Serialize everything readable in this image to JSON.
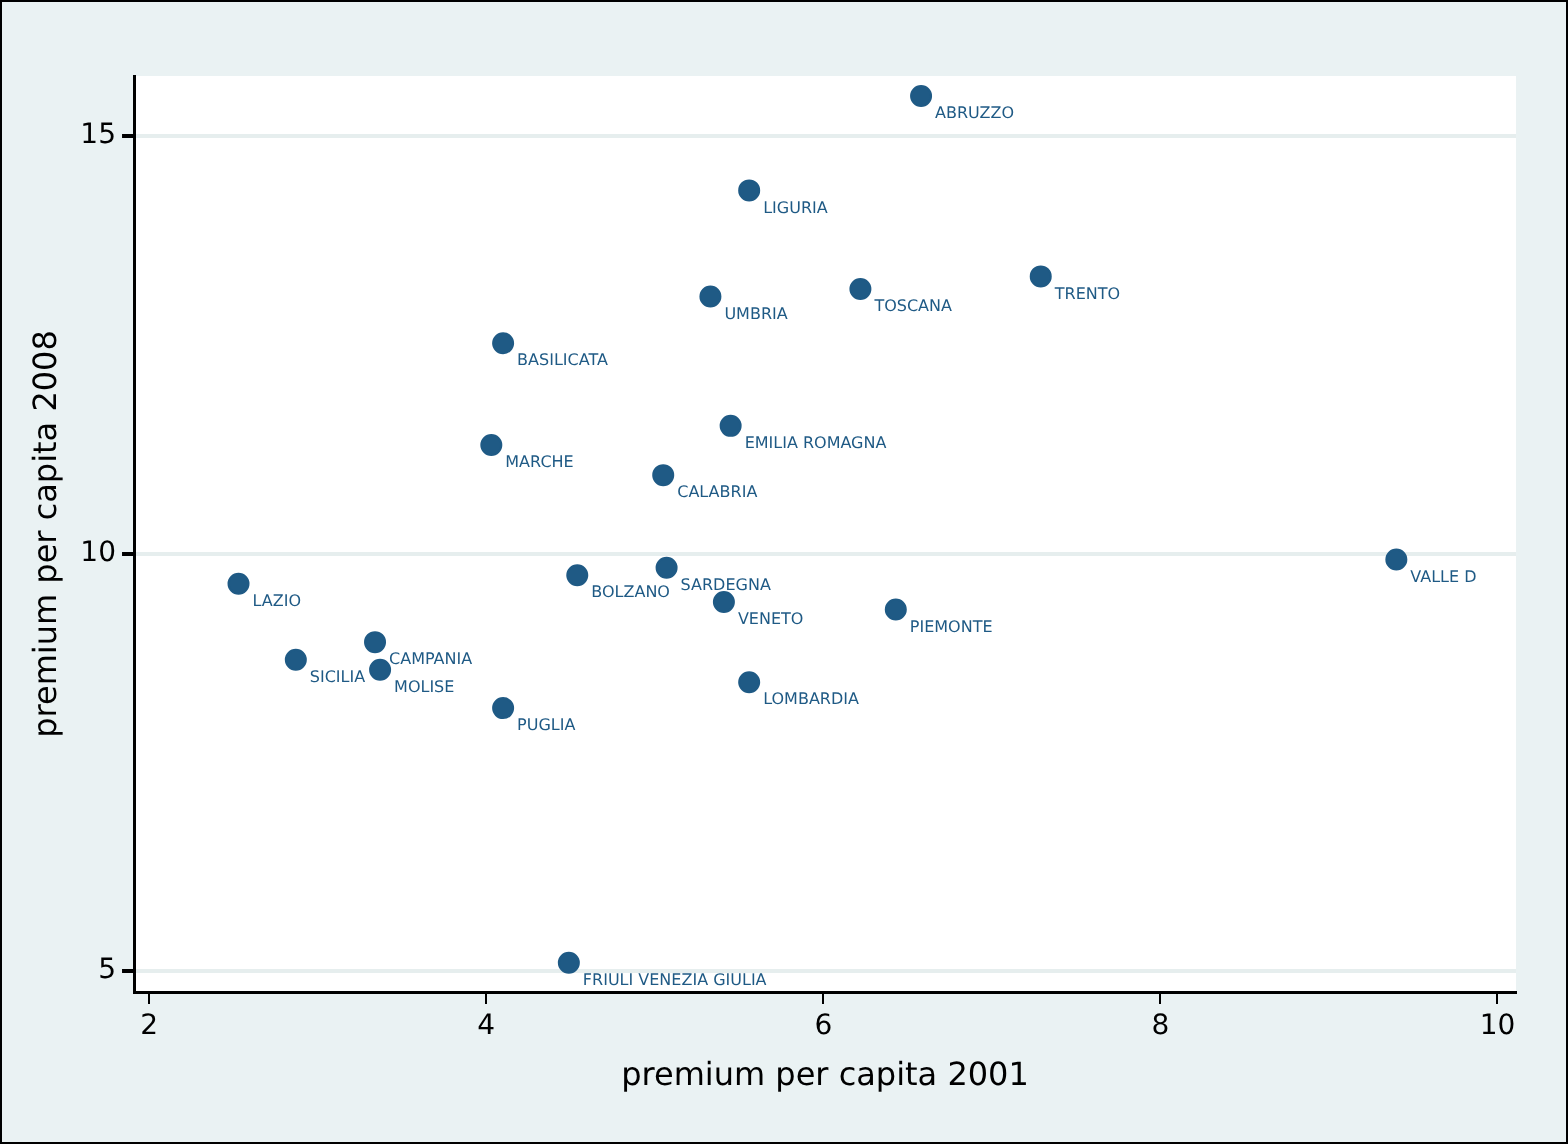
{
  "chart_data": {
    "type": "scatter",
    "xlabel": "premium per capita 2001",
    "ylabel": "premium per capita 2008",
    "x": [
      6.58,
      5.56,
      5.33,
      6.22,
      7.29,
      4.1,
      5.45,
      4.03,
      5.05,
      9.4,
      2.53,
      4.54,
      5.07,
      5.41,
      6.43,
      3.34,
      2.87,
      3.37,
      5.56,
      4.1,
      4.49
    ],
    "series": [
      {
        "color": "#1f5a85",
        "values": [
          15.48,
          14.35,
          13.08,
          13.17,
          13.32,
          12.52,
          11.53,
          11.3,
          10.94,
          9.93,
          9.64,
          9.74,
          9.83,
          9.42,
          9.33,
          8.94,
          8.73,
          8.61,
          8.46,
          8.15,
          5.1
        ]
      }
    ],
    "annotations": [
      {
        "text": "ABRUZZO",
        "x": 6.58,
        "y": 15.48
      },
      {
        "text": "LIGURIA",
        "x": 5.56,
        "y": 14.35
      },
      {
        "text": "UMBRIA",
        "x": 5.33,
        "y": 13.08
      },
      {
        "text": "TOSCANA",
        "x": 6.22,
        "y": 13.17
      },
      {
        "text": "TRENTO",
        "x": 7.29,
        "y": 13.32
      },
      {
        "text": "BASILICATA",
        "x": 4.1,
        "y": 12.52
      },
      {
        "text": "EMILIA ROMAGNA",
        "x": 5.45,
        "y": 11.53
      },
      {
        "text": "MARCHE",
        "x": 4.03,
        "y": 11.3
      },
      {
        "text": "CALABRIA",
        "x": 5.05,
        "y": 10.94
      },
      {
        "text": "VALLE D",
        "x": 9.4,
        "y": 9.93
      },
      {
        "text": "LAZIO",
        "x": 2.53,
        "y": 9.64
      },
      {
        "text": "BOLZANO",
        "x": 4.54,
        "y": 9.74
      },
      {
        "text": "SARDEGNA",
        "x": 5.07,
        "y": 9.83
      },
      {
        "text": "VENETO",
        "x": 5.41,
        "y": 9.42
      },
      {
        "text": "PIEMONTE",
        "x": 6.43,
        "y": 9.33
      },
      {
        "text": "CAMPANIA",
        "x": 3.34,
        "y": 8.94
      },
      {
        "text": "SICILIA",
        "x": 2.87,
        "y": 8.73
      },
      {
        "text": "MOLISE",
        "x": 3.37,
        "y": 8.61
      },
      {
        "text": "LOMBARDIA",
        "x": 5.56,
        "y": 8.46
      },
      {
        "text": "PUGLIA",
        "x": 4.1,
        "y": 8.15
      },
      {
        "text": "FRIULI VENEZIA GIULIA",
        "x": 4.49,
        "y": 5.1
      }
    ],
    "xlim": [
      1.91,
      10.11
    ],
    "xticks": [
      2,
      4,
      6,
      8,
      10
    ],
    "ylim": [
      4.75,
      15.72
    ],
    "yticks": [
      5,
      10,
      15
    ],
    "grid": "y",
    "marker": "circle",
    "legend": false
  }
}
